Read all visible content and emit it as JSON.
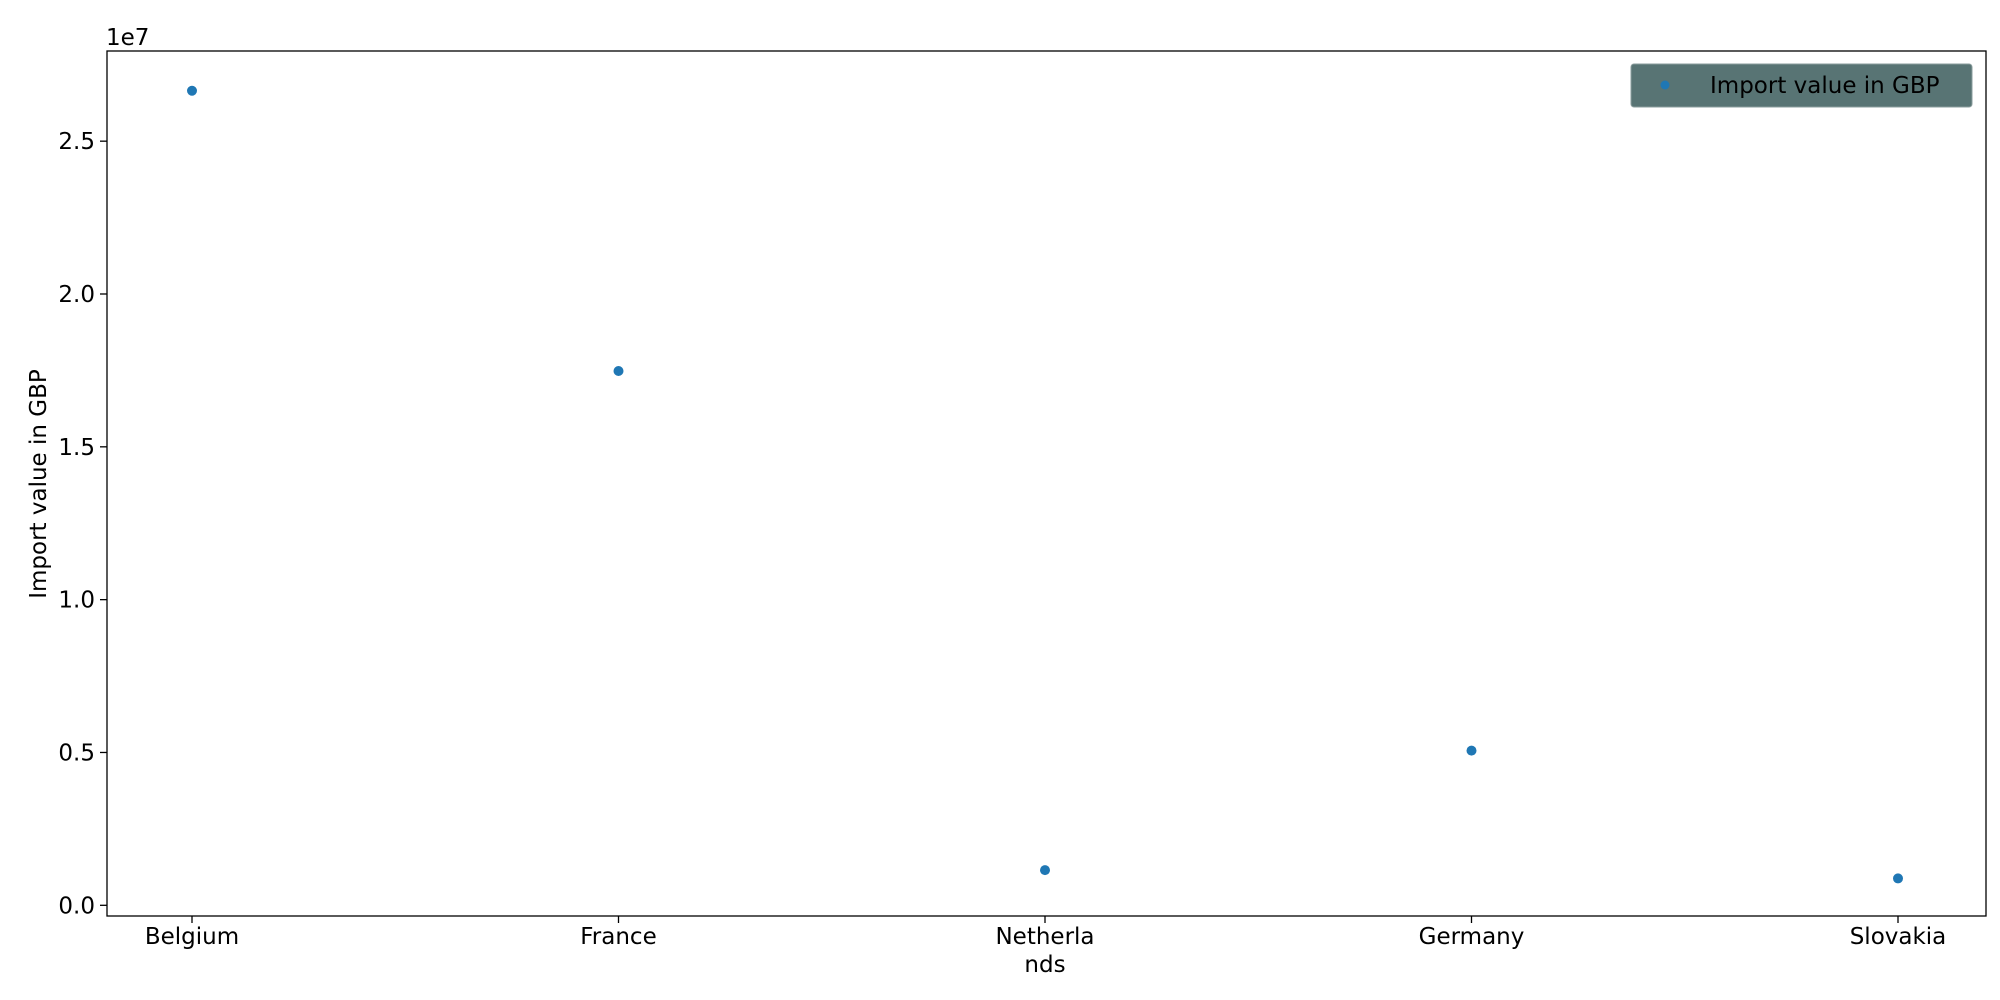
{
  "chart_data": {
    "type": "scatter",
    "categories": [
      "Belgium",
      "France",
      "Netherlands",
      "Germany",
      "Slovakia"
    ],
    "tick_labels": [
      [
        "Belgium"
      ],
      [
        "France"
      ],
      [
        "Netherla",
        "nds"
      ],
      [
        "Germany"
      ],
      [
        "Slovakia"
      ]
    ],
    "series": [
      {
        "name": "Import value in GBP",
        "color": "#1f77b4",
        "values": [
          26650000,
          17480000,
          1150000,
          5060000,
          880000
        ]
      }
    ],
    "ylabel": "Import value in GBP",
    "y_multiplier_label": "1e7",
    "ylim": [
      -350000,
      27950000
    ],
    "yticks": [
      0,
      5000000,
      10000000,
      15000000,
      20000000,
      25000000
    ],
    "ytick_labels": [
      "0.0",
      "0.5",
      "1.0",
      "1.5",
      "2.0",
      "2.5"
    ],
    "legend_position": "top-right",
    "legend_background": "#587474",
    "grid": false
  }
}
